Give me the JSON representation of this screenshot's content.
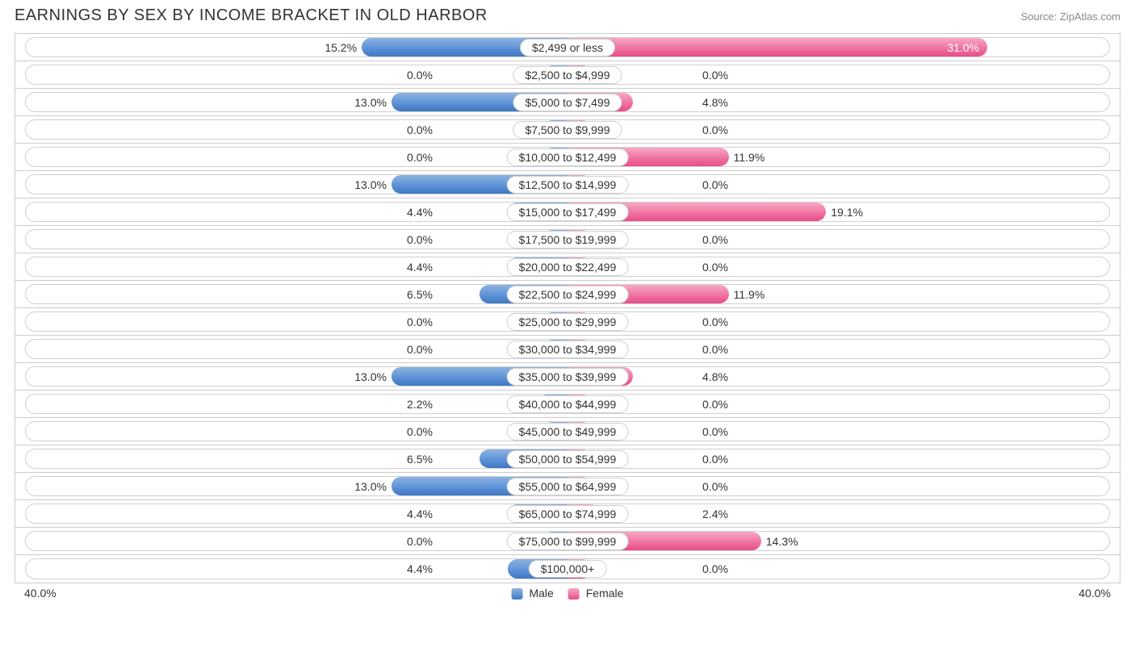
{
  "title": "EARNINGS BY SEX BY INCOME BRACKET IN OLD HARBOR",
  "source": "Source: ZipAtlas.com",
  "axis": {
    "left": "40.0%",
    "right": "40.0%",
    "max_pct": 40.0
  },
  "legend": {
    "male": "Male",
    "female": "Female"
  },
  "colors": {
    "male_top": "#8db4e2",
    "male_bottom": "#3f77c0",
    "female_top": "#f7a8c4",
    "female_bottom": "#e84c88",
    "border": "#cccccc",
    "pill_border": "#d0d0d0",
    "text": "#333333",
    "source_text": "#888888",
    "bg": "#ffffff"
  },
  "chart": {
    "type": "diverging-bar",
    "min_bar_pct": 4.5,
    "center_label_half_pct": 12.0,
    "rows": [
      {
        "label": "$2,499 or less",
        "male": 15.2,
        "female": 31.0
      },
      {
        "label": "$2,500 to $4,999",
        "male": 0.0,
        "female": 0.0
      },
      {
        "label": "$5,000 to $7,499",
        "male": 13.0,
        "female": 4.8
      },
      {
        "label": "$7,500 to $9,999",
        "male": 0.0,
        "female": 0.0
      },
      {
        "label": "$10,000 to $12,499",
        "male": 0.0,
        "female": 11.9
      },
      {
        "label": "$12,500 to $14,999",
        "male": 13.0,
        "female": 0.0
      },
      {
        "label": "$15,000 to $17,499",
        "male": 4.4,
        "female": 19.1
      },
      {
        "label": "$17,500 to $19,999",
        "male": 0.0,
        "female": 0.0
      },
      {
        "label": "$20,000 to $22,499",
        "male": 4.4,
        "female": 0.0
      },
      {
        "label": "$22,500 to $24,999",
        "male": 6.5,
        "female": 11.9
      },
      {
        "label": "$25,000 to $29,999",
        "male": 0.0,
        "female": 0.0
      },
      {
        "label": "$30,000 to $34,999",
        "male": 0.0,
        "female": 0.0
      },
      {
        "label": "$35,000 to $39,999",
        "male": 13.0,
        "female": 4.8
      },
      {
        "label": "$40,000 to $44,999",
        "male": 2.2,
        "female": 0.0
      },
      {
        "label": "$45,000 to $49,999",
        "male": 0.0,
        "female": 0.0
      },
      {
        "label": "$50,000 to $54,999",
        "male": 6.5,
        "female": 0.0
      },
      {
        "label": "$55,000 to $64,999",
        "male": 13.0,
        "female": 0.0
      },
      {
        "label": "$65,000 to $74,999",
        "male": 4.4,
        "female": 2.4
      },
      {
        "label": "$75,000 to $99,999",
        "male": 0.0,
        "female": 14.3
      },
      {
        "label": "$100,000+",
        "male": 4.4,
        "female": 0.0
      }
    ]
  }
}
